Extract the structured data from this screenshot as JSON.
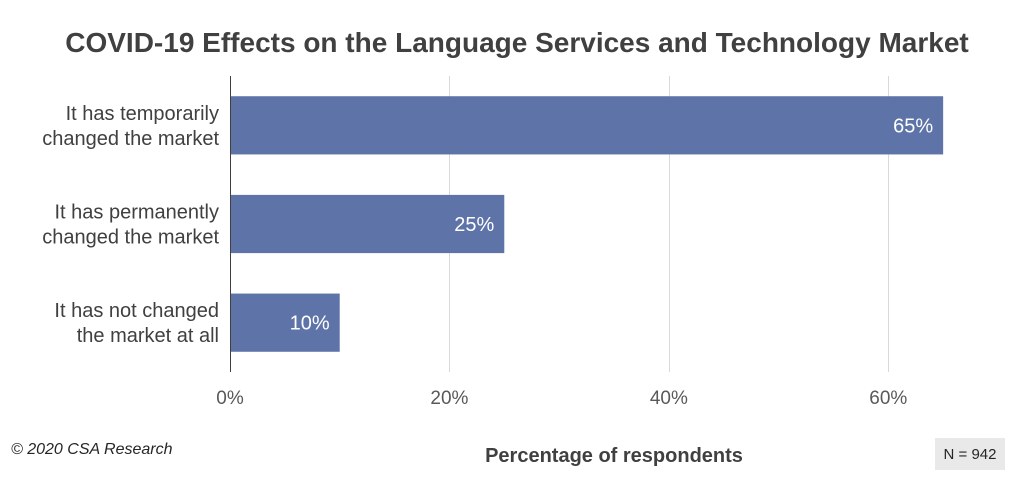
{
  "chart_data": {
    "type": "bar",
    "orientation": "horizontal",
    "title": "COVID-19 Effects on the Language Services and Technology Market",
    "categories": [
      [
        "It has temporarily",
        "changed the market"
      ],
      [
        "It has permanently",
        "changed the market"
      ],
      [
        "It has not changed",
        "the market at all"
      ]
    ],
    "values": [
      65,
      25,
      10
    ],
    "data_labels": [
      "65%",
      "25%",
      "10%"
    ],
    "xlabel": "Percentage of respondents",
    "ylabel": "",
    "xlim": [
      0,
      70
    ],
    "x_ticks": [
      0,
      20,
      40,
      60
    ],
    "x_tick_labels": [
      "0%",
      "20%",
      "40%",
      "60%"
    ],
    "grid": "vertical",
    "bar_color": "#5e73a8",
    "gridline_color": "#d9d9d9"
  },
  "footer": {
    "copyright": "© 2020 CSA Research",
    "sample_size": "N = 942"
  }
}
